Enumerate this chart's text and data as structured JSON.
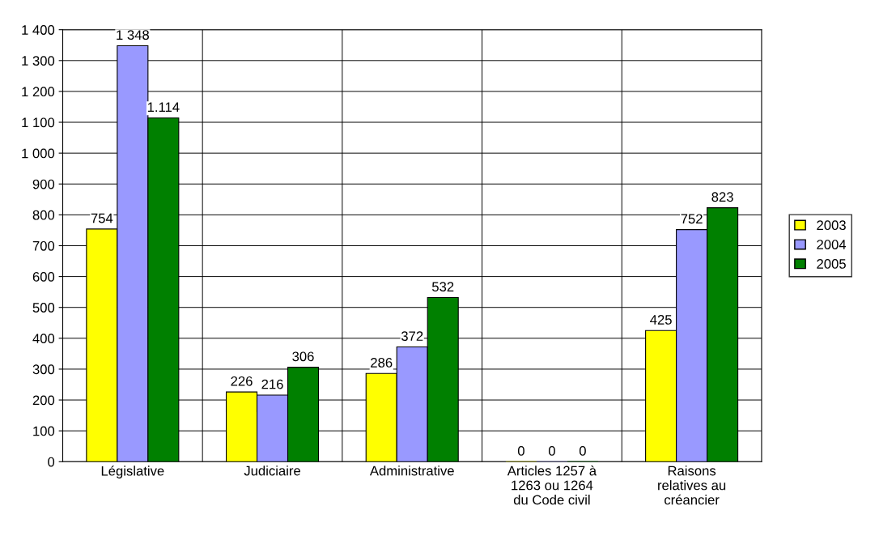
{
  "chart_data": {
    "type": "bar",
    "categories": [
      "Législative",
      "Judiciaire",
      "Administrative",
      "Articles 1257 à\n1263 ou 1264\ndu Code civil",
      "Raisons\nrelatives au\ncréancier"
    ],
    "series": [
      {
        "name": "2003",
        "color": "#ffff00",
        "values": [
          754,
          226,
          286,
          0,
          425
        ],
        "value_labels": [
          "754",
          "226",
          "286",
          "0",
          "425"
        ]
      },
      {
        "name": "2004",
        "color": "#9999ff",
        "values": [
          1348,
          216,
          372,
          0,
          752
        ],
        "value_labels": [
          "1 348",
          "216",
          "372",
          "0",
          "752"
        ]
      },
      {
        "name": "2005",
        "color": "#008000",
        "values": [
          1114,
          306,
          532,
          0,
          823
        ],
        "value_labels": [
          "1.114",
          "306",
          "532",
          "0",
          "823"
        ]
      }
    ],
    "ylim": [
      0,
      1400
    ],
    "yticks": [
      0,
      100,
      200,
      300,
      400,
      500,
      600,
      700,
      800,
      900,
      {
        "value": 1000,
        "label": "1 000"
      },
      {
        "value": 1100,
        "label": "1 100"
      },
      {
        "value": 1200,
        "label": "1 200"
      },
      {
        "value": 1300,
        "label": "1 300"
      },
      {
        "value": 1400,
        "label": "1 400"
      }
    ],
    "grid": true,
    "legend": "right"
  }
}
